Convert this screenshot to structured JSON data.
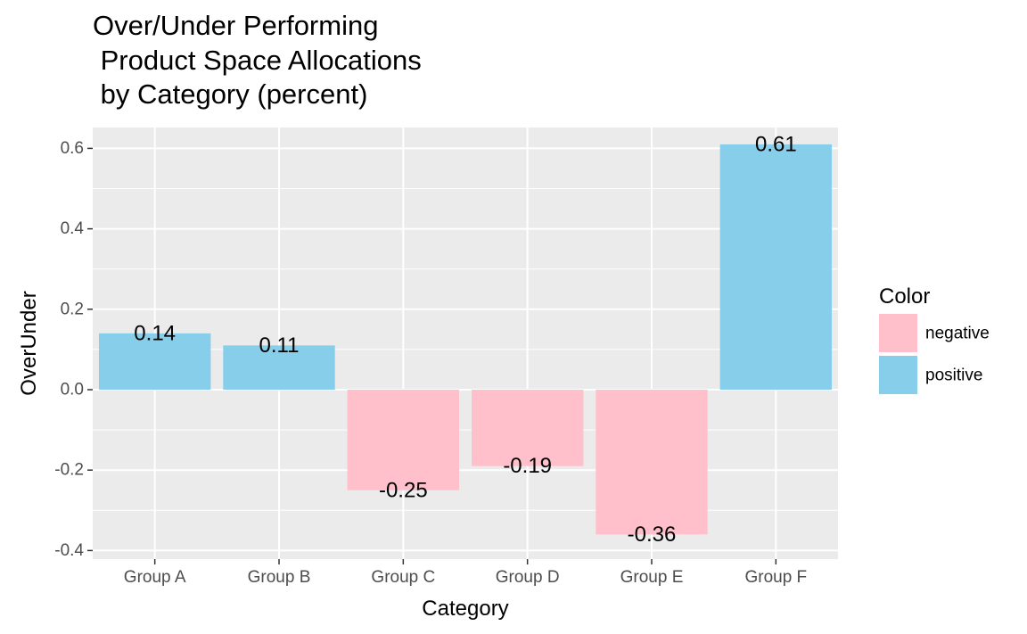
{
  "chart_data": {
    "type": "bar",
    "title": "Over/Under Performing\n Product Space Allocations\n by Category (percent)",
    "xlabel": "Category",
    "ylabel": "OverUnder",
    "categories": [
      "Group A",
      "Group B",
      "Group C",
      "Group D",
      "Group E",
      "Group F"
    ],
    "values": [
      0.14,
      0.11,
      -0.25,
      -0.19,
      -0.36,
      0.61
    ],
    "data_labels": [
      "0.14",
      "0.11",
      "-0.25",
      "-0.19",
      "-0.36",
      "0.61"
    ],
    "fill_groups": [
      "positive",
      "positive",
      "negative",
      "negative",
      "negative",
      "positive"
    ],
    "ylim": [
      -0.4,
      0.65
    ],
    "yticks": [
      -0.4,
      -0.2,
      0.0,
      0.2,
      0.4,
      0.6
    ],
    "ytick_labels": [
      "-0.4",
      "-0.2",
      "0.0",
      "0.2",
      "0.4",
      "0.6"
    ],
    "grid": true,
    "legend": {
      "title": "Color",
      "placement": "right",
      "entries": [
        {
          "label": "negative",
          "color": "#ffc0cb"
        },
        {
          "label": "positive",
          "color": "#87ceeb"
        }
      ]
    },
    "colors": {
      "negative": "#ffc0cb",
      "positive": "#87ceeb",
      "panel": "#ebebeb",
      "grid": "#ffffff"
    }
  }
}
